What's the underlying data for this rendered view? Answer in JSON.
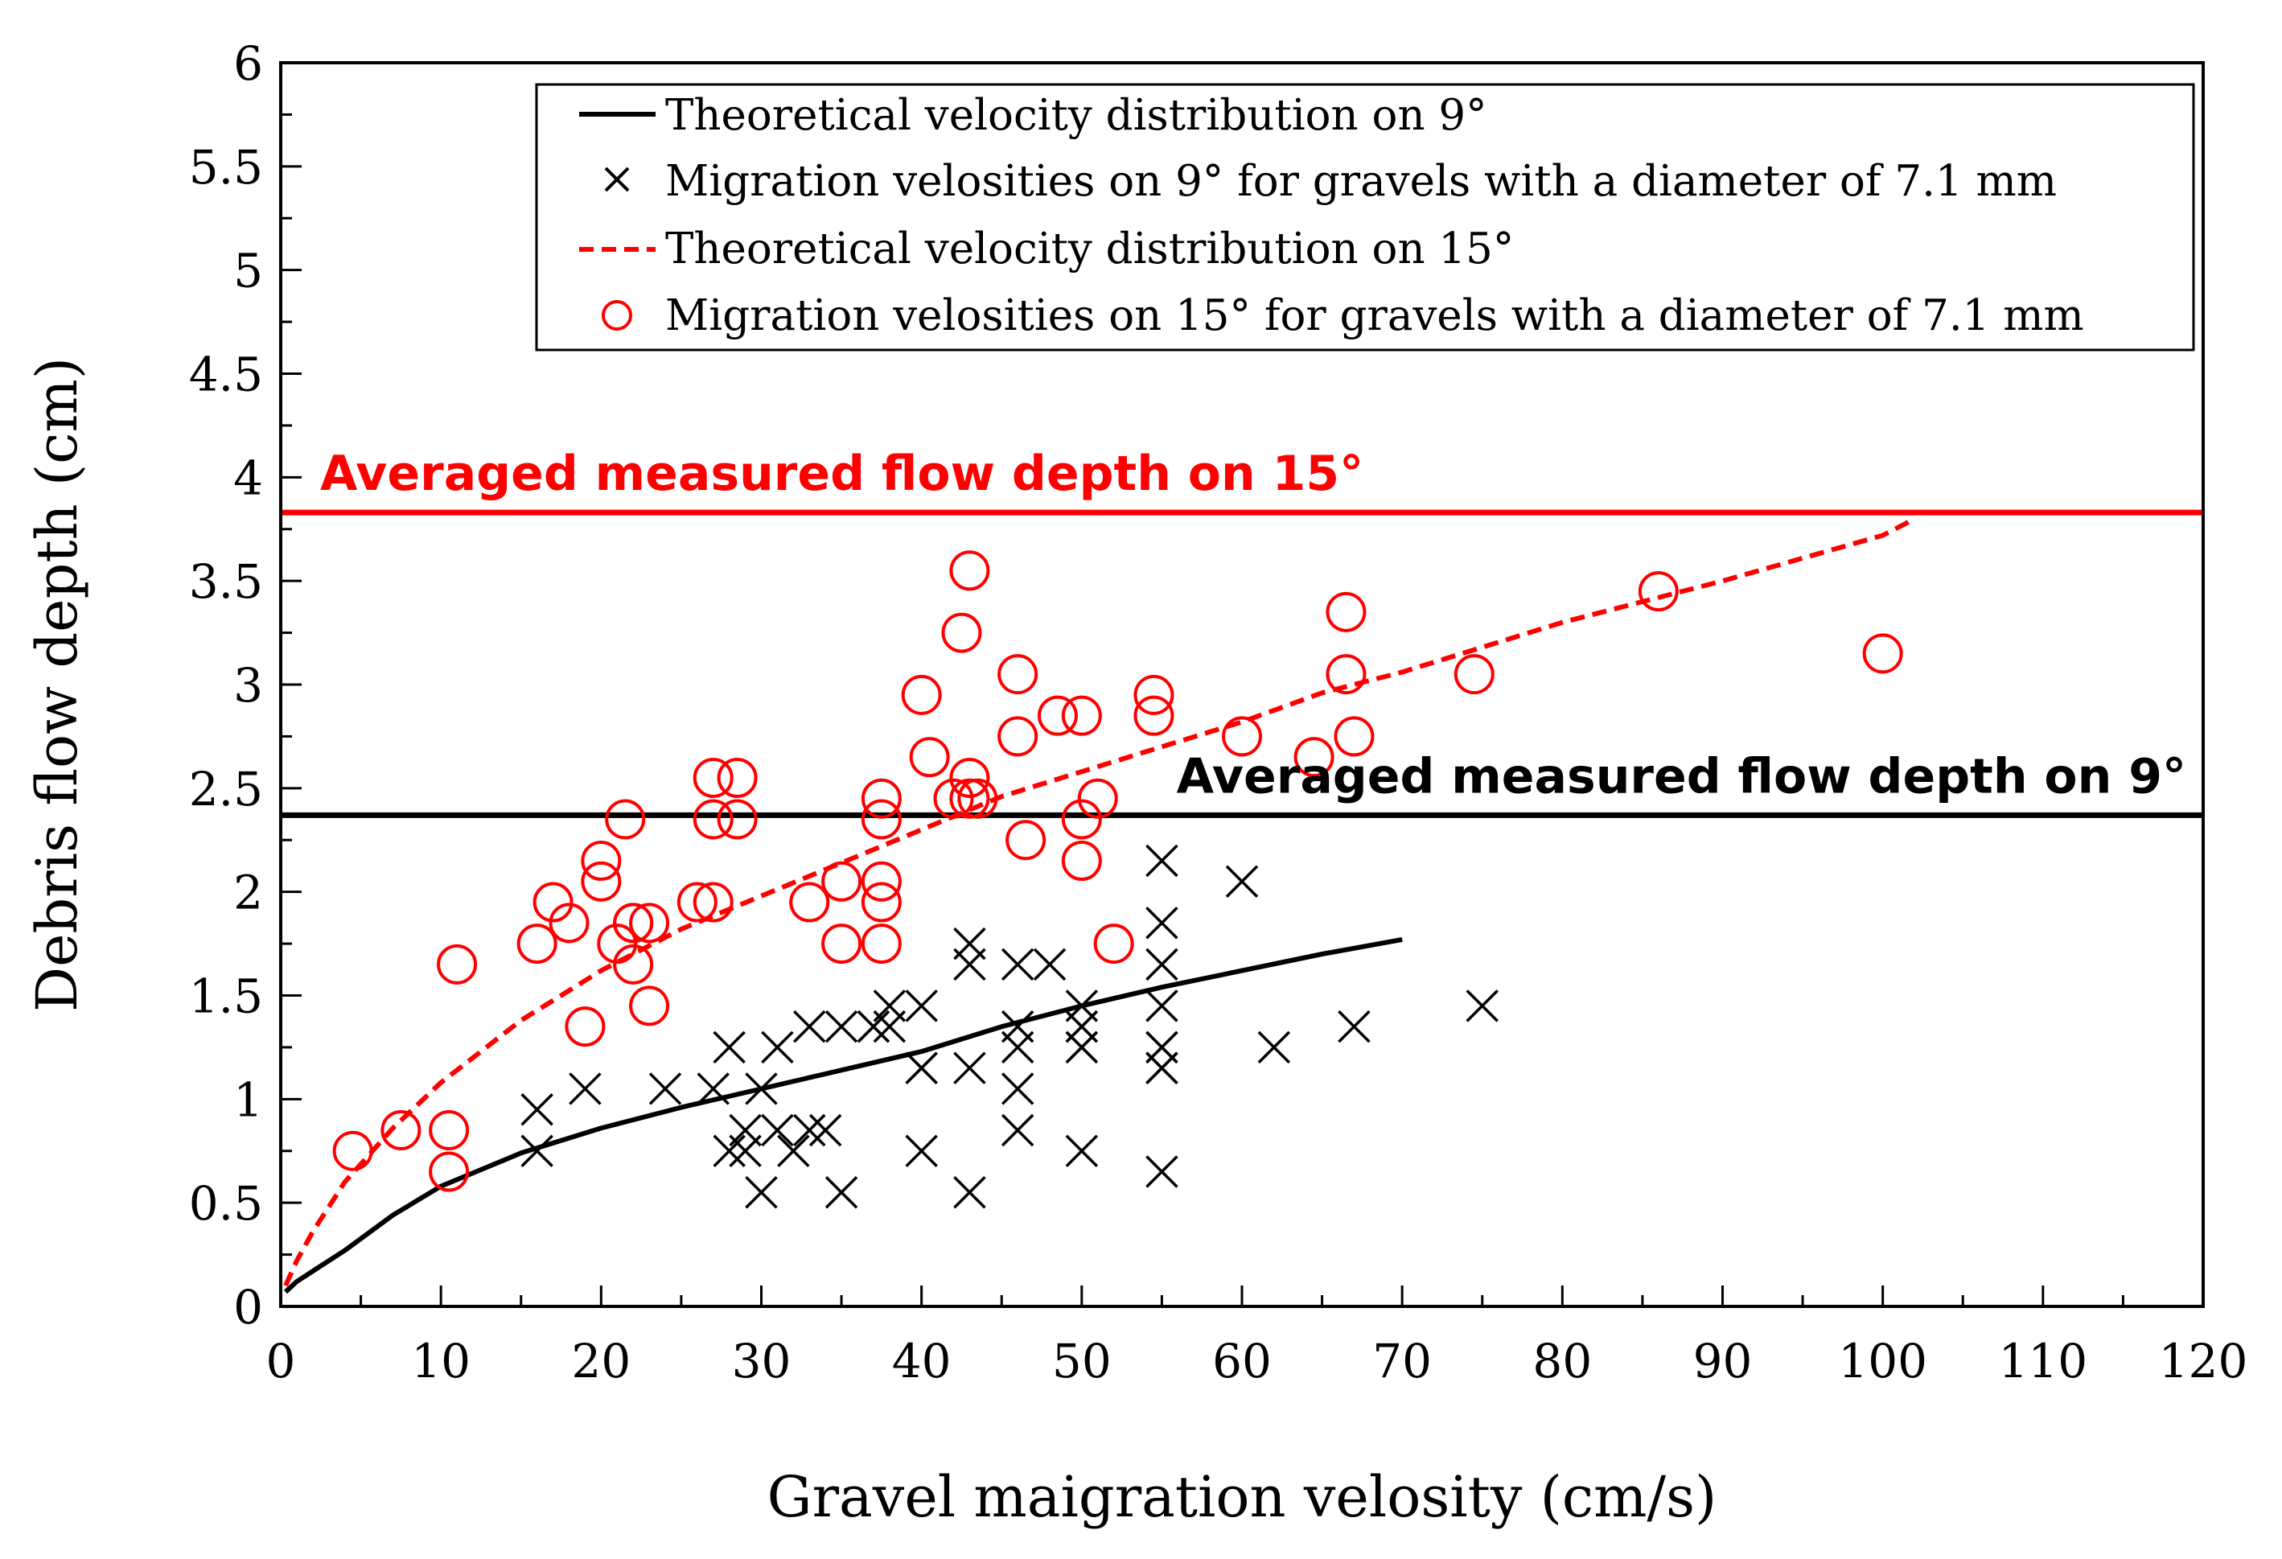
{
  "chart_data": {
    "type": "scatter",
    "title": "",
    "xlabel": "Gravel maigration velosity (cm/s)",
    "ylabel": "Debris flow depth (cm)",
    "xlim": [
      0,
      120
    ],
    "ylim": [
      0,
      6
    ],
    "xticks": [
      "0",
      "10",
      "20",
      "30",
      "40",
      "50",
      "60",
      "70",
      "80",
      "90",
      "100",
      "110",
      "120"
    ],
    "yticks": [
      "0",
      "0.5",
      "1",
      "1.5",
      "2",
      "2.5",
      "3",
      "3.5",
      "4",
      "4.5",
      "5",
      "5.5",
      "6"
    ],
    "colors": {
      "black": "#000000",
      "red": "#ff0000"
    },
    "legend_position": "top-right",
    "series": [
      {
        "name": "Theoretical velocity distribution on 9°",
        "kind": "line",
        "style": "solid",
        "color": "#000000",
        "x": [
          0.3,
          1,
          2,
          4,
          7,
          10,
          15,
          20,
          25,
          30,
          35,
          40,
          45,
          50,
          55,
          60,
          65,
          70
        ],
        "y": [
          0.07,
          0.12,
          0.17,
          0.27,
          0.44,
          0.58,
          0.74,
          0.86,
          0.96,
          1.05,
          1.14,
          1.23,
          1.35,
          1.45,
          1.54,
          1.62,
          1.7,
          1.77
        ]
      },
      {
        "name": "Migration velosities on 9° for gravels with a diameter of 7.1 mm",
        "kind": "scatter",
        "marker": "x",
        "color": "#000000",
        "x": [
          16,
          16,
          19,
          24,
          27,
          28,
          28,
          29,
          29,
          30,
          30,
          31,
          31,
          32,
          33,
          33,
          34,
          35,
          35,
          37,
          37,
          38,
          38,
          40,
          40,
          40,
          40,
          43,
          43,
          43,
          43,
          46,
          46,
          46,
          46,
          46,
          48,
          50,
          50,
          50,
          50,
          50,
          50,
          55,
          55,
          55,
          55,
          55,
          55,
          55,
          55,
          55,
          55,
          60,
          62,
          67,
          75
        ],
        "y": [
          0.95,
          0.75,
          1.05,
          1.05,
          1.05,
          0.75,
          1.25,
          0.85,
          0.75,
          0.55,
          1.05,
          0.85,
          1.25,
          0.75,
          0.85,
          1.35,
          0.85,
          0.55,
          1.35,
          1.35,
          1.35,
          1.35,
          1.45,
          1.45,
          1.15,
          1.15,
          0.75,
          1.65,
          1.75,
          1.15,
          0.55,
          1.65,
          1.35,
          1.25,
          1.05,
          0.85,
          1.65,
          1.45,
          1.35,
          1.35,
          1.25,
          1.25,
          0.75,
          2.15,
          1.85,
          1.65,
          1.45,
          1.25,
          1.25,
          1.15,
          1.15,
          1.15,
          0.65,
          2.05,
          1.25,
          1.35,
          1.45
        ]
      },
      {
        "name": "Theoretical velocity distribution on 15°",
        "kind": "line",
        "style": "dashed",
        "color": "#ff0000",
        "x": [
          0.3,
          1,
          2,
          4,
          7,
          10,
          15,
          20,
          25,
          30,
          35,
          40,
          45,
          50,
          55,
          60,
          65,
          70,
          80,
          90,
          100,
          102
        ],
        "y": [
          0.1,
          0.22,
          0.36,
          0.6,
          0.86,
          1.08,
          1.38,
          1.62,
          1.82,
          1.98,
          2.14,
          2.3,
          2.46,
          2.58,
          2.7,
          2.82,
          2.96,
          3.06,
          3.3,
          3.5,
          3.72,
          3.8
        ]
      },
      {
        "name": "Migration velosities on 15° for gravels with a diameter of 7.1 mm",
        "kind": "scatter",
        "marker": "o",
        "color": "#ff0000",
        "x": [
          4.5,
          7.5,
          10.5,
          10.5,
          11,
          16,
          17,
          18,
          19,
          20,
          20,
          21,
          21.5,
          22,
          22,
          22,
          23,
          23,
          26,
          27,
          27,
          27,
          28.5,
          28.5,
          33,
          35,
          35,
          37.5,
          37.5,
          37.5,
          37.5,
          37.5,
          40,
          40.5,
          42,
          42.5,
          43,
          43,
          43,
          43.5,
          46,
          46,
          46.5,
          48.5,
          50,
          50,
          50,
          51,
          52,
          54.5,
          54.5,
          60,
          64.5,
          66.5,
          66.5,
          67,
          74.5,
          86,
          100
        ],
        "y": [
          0.75,
          0.85,
          0.85,
          0.65,
          1.65,
          1.75,
          1.95,
          1.85,
          1.35,
          2.05,
          2.15,
          1.75,
          2.35,
          1.85,
          1.85,
          1.65,
          1.85,
          1.45,
          1.95,
          1.95,
          2.35,
          2.55,
          2.35,
          2.55,
          1.95,
          1.75,
          2.05,
          2.45,
          2.35,
          2.05,
          1.95,
          1.75,
          2.95,
          2.65,
          2.45,
          3.25,
          3.55,
          2.55,
          2.45,
          2.45,
          3.05,
          2.75,
          2.25,
          2.85,
          2.85,
          2.35,
          2.15,
          2.45,
          1.75,
          2.95,
          2.85,
          2.75,
          2.65,
          3.35,
          3.05,
          2.75,
          3.05,
          3.45,
          3.15
        ]
      }
    ],
    "reference_lines": [
      {
        "y": 3.83,
        "color": "#ff0000",
        "label": "Averaged measured flow depth on 15°"
      },
      {
        "y": 2.37,
        "color": "#000000",
        "label": "Averaged measured flow depth on 9°"
      }
    ]
  }
}
